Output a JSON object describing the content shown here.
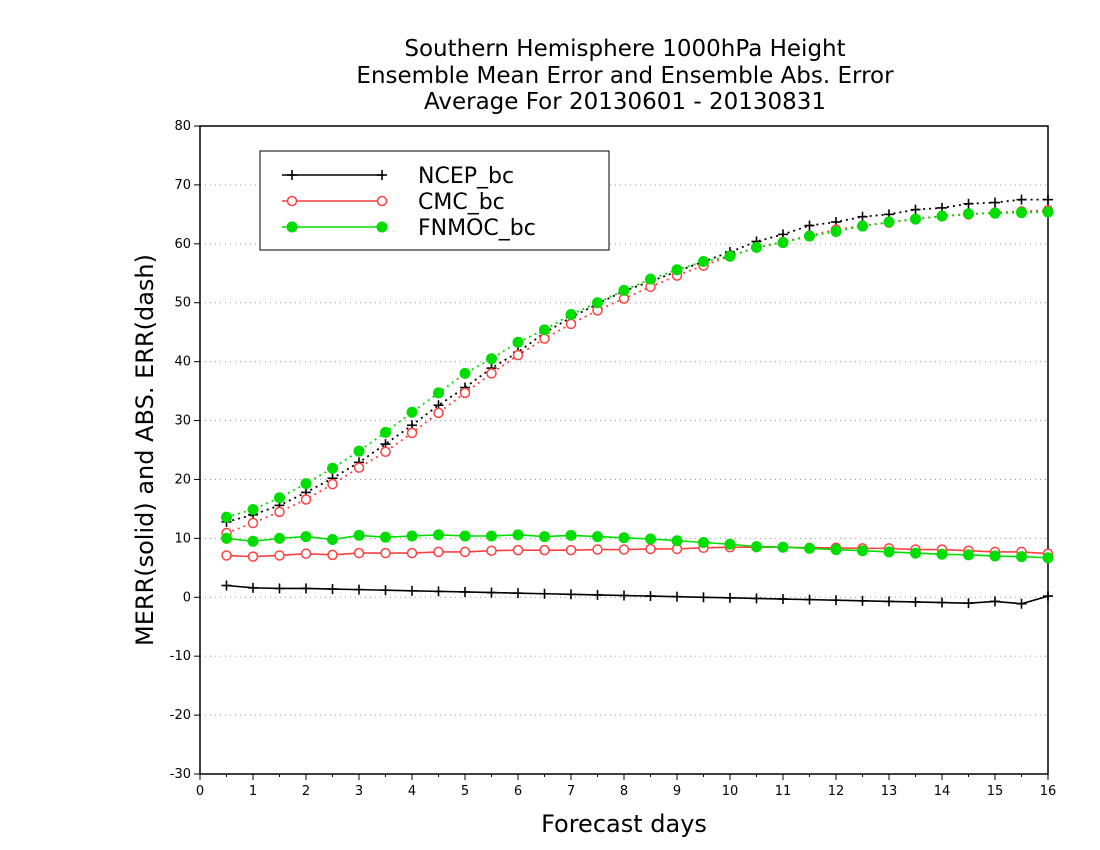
{
  "chart_data": {
    "type": "line",
    "title": "Southern Hemisphere 1000hPa Height",
    "subtitle": "Ensemble Mean Error and Ensemble Abs. Error",
    "subtitle2": "Average For 20130601 - 20130831",
    "xlabel": "Forecast days",
    "ylabel": "MERR(solid) and ABS. ERR(dash)",
    "xlim": [
      0,
      16
    ],
    "ylim": [
      -30,
      80
    ],
    "xticks": [
      "0",
      "1",
      "2",
      "3",
      "4",
      "5",
      "6",
      "7",
      "8",
      "9",
      "10",
      "11",
      "12",
      "13",
      "14",
      "15",
      "16"
    ],
    "yticks": [
      "-30",
      "-20",
      "-10",
      "0",
      "10",
      "20",
      "30",
      "40",
      "50",
      "60",
      "70",
      "80"
    ],
    "grid": "horizontal dotted",
    "legend_position": "top-left",
    "x": [
      0.5,
      1,
      1.5,
      2,
      2.5,
      3,
      3.5,
      4,
      4.5,
      5,
      5.5,
      6,
      6.5,
      7,
      7.5,
      8,
      8.5,
      9,
      9.5,
      10,
      10.5,
      11,
      11.5,
      12,
      12.5,
      13,
      13.5,
      14,
      14.5,
      15,
      15.5,
      16
    ],
    "series": [
      {
        "name": "NCEP_bc",
        "color": "#000000",
        "marker": "plus",
        "merr": [
          2.0,
          1.6,
          1.5,
          1.5,
          1.4,
          1.3,
          1.2,
          1.1,
          1.0,
          0.9,
          0.8,
          0.7,
          0.6,
          0.5,
          0.4,
          0.3,
          0.2,
          0.1,
          0.0,
          -0.1,
          -0.2,
          -0.3,
          -0.4,
          -0.5,
          -0.6,
          -0.7,
          -0.8,
          -0.9,
          -1.0,
          -0.7,
          -1.1,
          0.2
        ],
        "abs_err": [
          12.8,
          14.0,
          15.6,
          17.8,
          20.2,
          22.9,
          26.0,
          29.2,
          32.6,
          35.6,
          38.9,
          41.6,
          44.9,
          47.5,
          49.8,
          52.0,
          53.6,
          55.3,
          57.0,
          58.6,
          60.4,
          61.6,
          63.1,
          63.7,
          64.6,
          65.0,
          65.8,
          66.1,
          66.8,
          67.0,
          67.5,
          67.5
        ]
      },
      {
        "name": "CMC_bc",
        "color": "#ff4040",
        "marker": "open-circle",
        "merr": [
          7.1,
          6.9,
          7.1,
          7.4,
          7.2,
          7.5,
          7.5,
          7.5,
          7.7,
          7.7,
          7.9,
          8.0,
          8.0,
          8.0,
          8.1,
          8.1,
          8.2,
          8.2,
          8.4,
          8.5,
          8.5,
          8.5,
          8.4,
          8.4,
          8.3,
          8.3,
          8.1,
          8.1,
          7.9,
          7.7,
          7.7,
          7.4
        ],
        "abs_err": [
          10.9,
          12.6,
          14.5,
          16.6,
          19.2,
          22.0,
          24.7,
          27.9,
          31.3,
          34.7,
          38.0,
          41.1,
          43.9,
          46.4,
          48.7,
          50.7,
          52.7,
          54.6,
          56.3,
          57.9,
          59.4,
          60.3,
          61.4,
          62.4,
          63.1,
          63.6,
          64.2,
          64.7,
          65.0,
          65.3,
          65.5,
          65.7
        ]
      },
      {
        "name": "FNMOC_bc",
        "color": "#00dd00",
        "marker": "filled-circle",
        "merr": [
          10.0,
          9.5,
          10.0,
          10.3,
          9.8,
          10.5,
          10.2,
          10.4,
          10.6,
          10.4,
          10.4,
          10.6,
          10.3,
          10.5,
          10.3,
          10.1,
          9.9,
          9.6,
          9.3,
          9.0,
          8.6,
          8.5,
          8.3,
          8.1,
          7.9,
          7.7,
          7.5,
          7.3,
          7.2,
          7.0,
          6.9,
          6.7
        ],
        "abs_err": [
          13.6,
          14.9,
          16.9,
          19.3,
          21.9,
          24.8,
          28.0,
          31.4,
          34.7,
          38.0,
          40.5,
          43.3,
          45.4,
          48.0,
          50.0,
          52.1,
          54.0,
          55.6,
          57.0,
          57.9,
          59.4,
          60.2,
          61.3,
          62.1,
          63.0,
          63.7,
          64.2,
          64.7,
          65.1,
          65.2,
          65.3,
          65.4
        ]
      }
    ]
  }
}
